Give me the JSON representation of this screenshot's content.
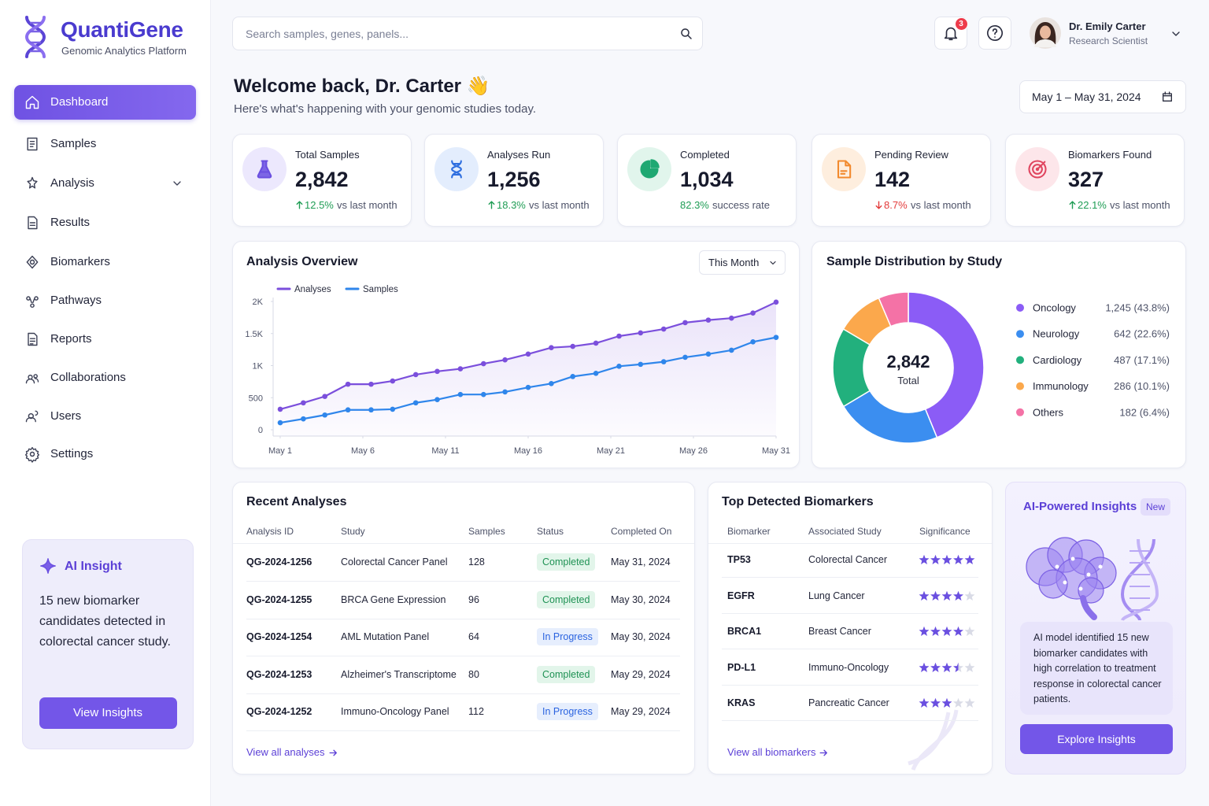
{
  "sidebar": {
    "brand": "QuantiGene",
    "tagline": "Genomic Analytics Platform",
    "nav": [
      "Dashboard",
      "Samples",
      "Analysis",
      "Results",
      "Biomarkers",
      "Pathways",
      "Reports",
      "Collaborations",
      "Users",
      "Settings"
    ],
    "insight": {
      "title": "AI Insight",
      "text": "15 new biomarker candidates detected in colorectal cancer study.",
      "button": "View Insights"
    }
  },
  "header": {
    "search_placeholder": "Search samples, genes, panels...",
    "notifications": 3,
    "user_name": "Dr. Emily Carter",
    "user_role": "Research Scientist"
  },
  "welcome": {
    "title": "Welcome back, Dr. Carter 👋",
    "subtitle": "Here's what's happening with your genomic studies today.",
    "date_range": "May 1 – May 31, 2024"
  },
  "stats": [
    {
      "label": "Total Samples",
      "value": "2,842",
      "change": "12.5%",
      "note": "vs last month",
      "trend": "up"
    },
    {
      "label": "Analyses Run",
      "value": "1,256",
      "change": "18.3%",
      "note": "vs last month",
      "trend": "up"
    },
    {
      "label": "Completed",
      "value": "1,034",
      "change": "82.3%",
      "note": "success rate"
    },
    {
      "label": "Pending Review",
      "value": "142",
      "change": "8.7%",
      "note": "vs last month",
      "trend": "down"
    },
    {
      "label": "Biomarkers Found",
      "value": "327",
      "change": "22.1%",
      "note": "vs last month",
      "trend": "up"
    }
  ],
  "chart_data": [
    {
      "type": "line",
      "title": "Analysis Overview",
      "filter": "This Month",
      "x": [
        1,
        2.4,
        3.7,
        5.1,
        6.5,
        7.8,
        9.2,
        10.5,
        11.9,
        13.3,
        14.6,
        16,
        17.4,
        18.7,
        20.1,
        21.5,
        22.8,
        24.2,
        25.5,
        26.9,
        28.3,
        29.6,
        31
      ],
      "xlim": [
        1,
        31
      ],
      "xticks": [
        {
          "value": 1,
          "label": "May 1"
        },
        {
          "value": 6,
          "label": "May 6"
        },
        {
          "value": 11,
          "label": "May 11"
        },
        {
          "value": 16,
          "label": "May 16"
        },
        {
          "value": 21,
          "label": "May 21"
        },
        {
          "value": 26,
          "label": "May 26"
        },
        {
          "value": 31,
          "label": "May 31"
        }
      ],
      "ylim": [
        0,
        2000
      ],
      "yticks": [
        0,
        500,
        {
          "value": 1000,
          "label": "1K"
        },
        {
          "value": 1500,
          "label": "1.5K"
        },
        {
          "value": 2000,
          "label": "2K"
        }
      ],
      "grid": false,
      "series": [
        {
          "name": "Analyses",
          "color": "#7b4fdc",
          "values": [
            320,
            420,
            520,
            710,
            710,
            760,
            860,
            910,
            950,
            1030,
            1090,
            1180,
            1280,
            1300,
            1350,
            1460,
            1510,
            1570,
            1670,
            1710,
            1740,
            1820,
            1990
          ]
        },
        {
          "name": "Samples",
          "color": "#2f86eb",
          "values": [
            110,
            170,
            230,
            310,
            310,
            320,
            420,
            470,
            550,
            550,
            590,
            660,
            720,
            830,
            880,
            990,
            1020,
            1060,
            1130,
            1180,
            1240,
            1370,
            1440
          ]
        }
      ]
    },
    {
      "type": "pie",
      "title": "Sample Distribution by Study",
      "center_value": "2,842",
      "center_label": "Total",
      "categories": [
        "Oncology",
        "Neurology",
        "Cardiology",
        "Immunology",
        "Others"
      ],
      "values": [
        1245,
        642,
        487,
        286,
        182
      ],
      "value_labels": [
        "1,245 (43.8%)",
        "642 (22.6%)",
        "487 (17.1%)",
        "286 (10.1%)",
        "182 (6.4%)"
      ],
      "colors": [
        "#8b5cf6",
        "#3b8ef0",
        "#22b07d",
        "#fba84c",
        "#f472a6"
      ]
    }
  ],
  "recent_analyses": {
    "title": "Recent Analyses",
    "columns": [
      "Analysis ID",
      "Study",
      "Samples",
      "Status",
      "Completed On"
    ],
    "rows": [
      [
        "QG-2024-1256",
        "Colorectal Cancer Panel",
        128,
        "Completed",
        "May 31, 2024"
      ],
      [
        "QG-2024-1255",
        "BRCA Gene Expression",
        96,
        "Completed",
        "May 30, 2024"
      ],
      [
        "QG-2024-1254",
        "AML Mutation Panel",
        64,
        "In Progress",
        "May 30, 2024"
      ],
      [
        "QG-2024-1253",
        "Alzheimer's Transcriptome",
        80,
        "Completed",
        "May 29, 2024"
      ],
      [
        "QG-2024-1252",
        "Immuno-Oncology Panel",
        112,
        "In Progress",
        "May 29, 2024"
      ]
    ],
    "link": "View all analyses"
  },
  "biomarkers": {
    "title": "Top Detected Biomarkers",
    "columns": [
      "Biomarker",
      "Associated Study",
      "Significance"
    ],
    "rows": [
      [
        "TP53",
        "Colorectal Cancer",
        5
      ],
      [
        "EGFR",
        "Lung Cancer",
        4
      ],
      [
        "BRCA1",
        "Breast Cancer",
        4
      ],
      [
        "PD-L1",
        "Immuno-Oncology",
        3.5
      ],
      [
        "KRAS",
        "Pancreatic Cancer",
        3
      ]
    ],
    "link": "View all biomarkers"
  },
  "ai_panel": {
    "title": "AI-Powered Insights",
    "badge": "New",
    "text": "AI model identified 15 new biomarker candidates with high correlation to treatment response in colorectal cancer patients.",
    "button": "Explore Insights"
  }
}
